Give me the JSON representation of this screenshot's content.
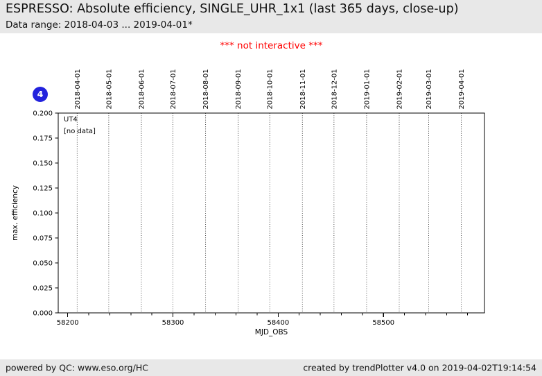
{
  "header": {
    "title": "ESPRESSO: Absolute efficiency, SINGLE_UHR_1x1 (last 365 days, close-up)",
    "subtitle": "Data range: 2018-04-03 ... 2019-04-01*"
  },
  "note": "*** not interactive ***",
  "badge": {
    "label": "4",
    "color": "#2222dd"
  },
  "chart_data": {
    "type": "scatter",
    "title": "",
    "xlabel": "MJD_OBS",
    "ylabel": "max. efficiency",
    "xlim": [
      58191,
      58596
    ],
    "ylim": [
      0.0,
      0.2
    ],
    "series": [],
    "status": "no data",
    "annotations": [
      "UT4",
      "[no data]"
    ],
    "grid": {
      "axis": "x",
      "style": "dotted"
    },
    "x_major_ticks": {
      "values": [
        58200,
        58300,
        58400,
        58500
      ],
      "labels": [
        "58200",
        "58300",
        "58400",
        "58500"
      ]
    },
    "x_minor_step": 20,
    "y_ticks": {
      "values": [
        0.0,
        0.025,
        0.05,
        0.075,
        0.1,
        0.125,
        0.15,
        0.175,
        0.2
      ],
      "labels": [
        "0.000",
        "0.025",
        "0.050",
        "0.075",
        "0.100",
        "0.125",
        "0.150",
        "0.175",
        "0.200"
      ]
    },
    "x_top_ticks": [
      {
        "label": "2018-04-01",
        "mjd": 58209
      },
      {
        "label": "2018-05-01",
        "mjd": 58239
      },
      {
        "label": "2018-06-01",
        "mjd": 58270
      },
      {
        "label": "2018-07-01",
        "mjd": 58300
      },
      {
        "label": "2018-08-01",
        "mjd": 58331
      },
      {
        "label": "2018-09-01",
        "mjd": 58362
      },
      {
        "label": "2018-10-01",
        "mjd": 58392
      },
      {
        "label": "2018-11-01",
        "mjd": 58423
      },
      {
        "label": "2018-12-01",
        "mjd": 58453
      },
      {
        "label": "2019-01-01",
        "mjd": 58484
      },
      {
        "label": "2019-02-01",
        "mjd": 58515
      },
      {
        "label": "2019-03-01",
        "mjd": 58543
      },
      {
        "label": "2019-04-01",
        "mjd": 58574
      }
    ]
  },
  "footer": {
    "left": "powered by QC: www.eso.org/HC",
    "right": "created by trendPlotter v4.0 on 2019-04-02T19:14:54"
  }
}
